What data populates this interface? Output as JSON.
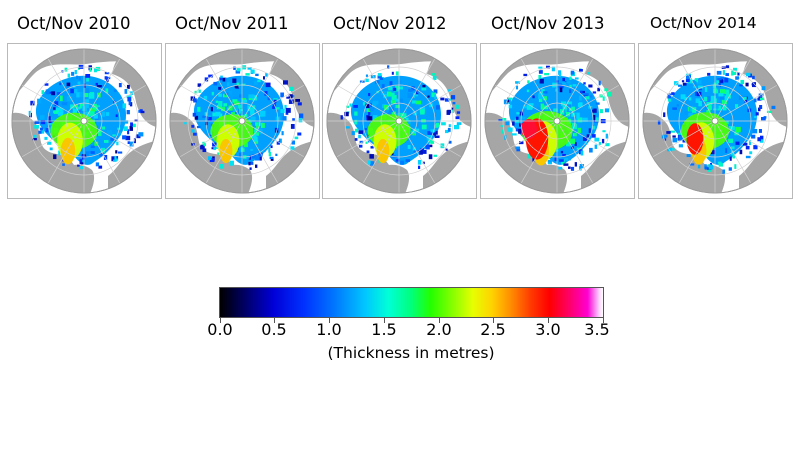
{
  "panels": [
    {
      "title": "Oct/Nov 2010",
      "thick_spread": 0.55,
      "red_level": 0.15
    },
    {
      "title": "Oct/Nov 2011",
      "thick_spread": 0.35,
      "red_level": 0.05
    },
    {
      "title": "Oct/Nov 2012",
      "thick_spread": 0.35,
      "red_level": 0.12
    },
    {
      "title": "Oct/Nov 2013",
      "thick_spread": 0.75,
      "red_level": 0.9
    },
    {
      "title": "Oct/Nov 2014",
      "thick_spread": 0.6,
      "red_level": 0.55
    }
  ],
  "colorbar": {
    "ticks": [
      "0.0",
      "0.5",
      "1.0",
      "1.5",
      "2.0",
      "2.5",
      "3.0",
      "3.5"
    ],
    "caption": "(Thickness in metres)",
    "min": 0.0,
    "max": 3.5
  },
  "colors": {
    "land": "#a6a6a6",
    "ocean": "#ffffff",
    "graticule": "#d0d0d0",
    "frame": "#b9b9b9"
  }
}
